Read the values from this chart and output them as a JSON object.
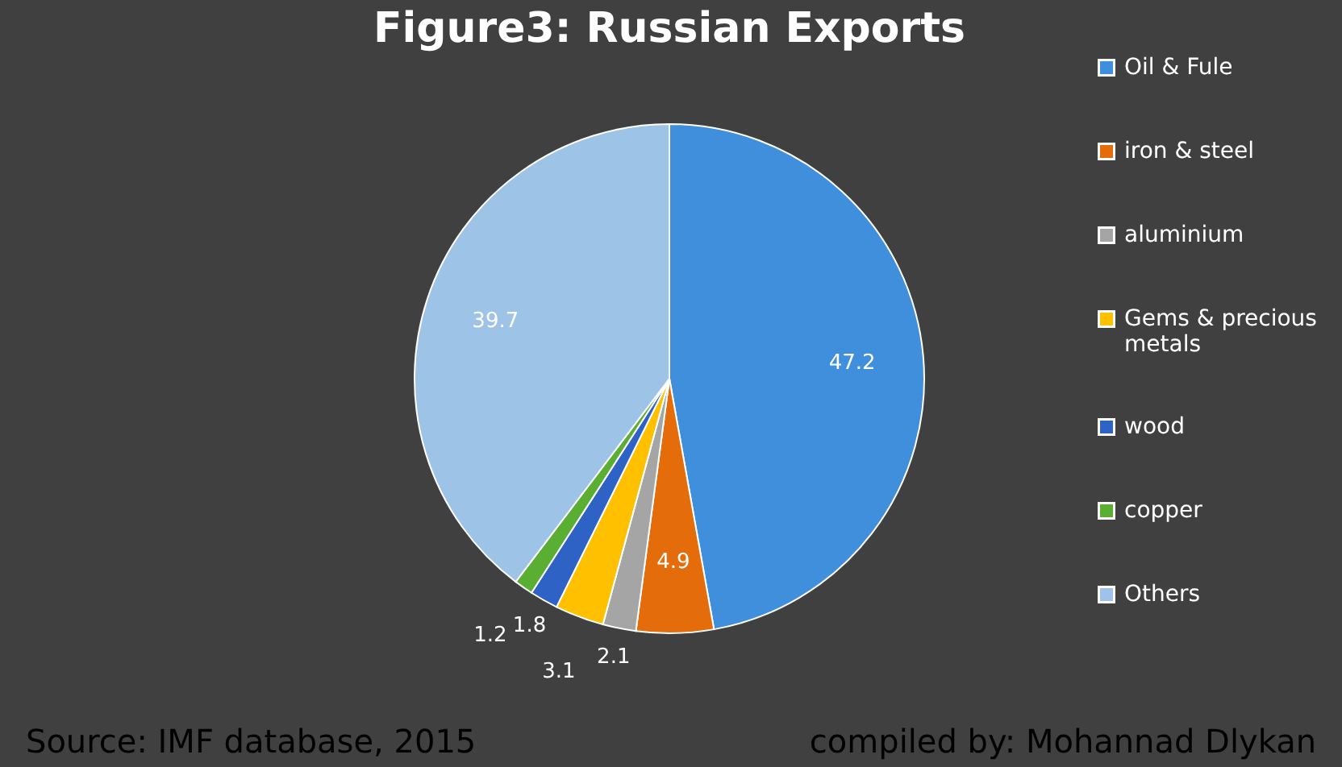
{
  "chart_data": {
    "type": "pie",
    "title": "Figure3: Russian Exports",
    "categories": [
      "Oil & Fule",
      "iron & steel",
      "aluminium",
      "Gems & precious metals",
      "wood",
      "copper",
      "Others"
    ],
    "values": [
      47.2,
      4.9,
      2.1,
      3.1,
      1.8,
      1.2,
      39.7
    ],
    "colors": [
      "#3f8fdc",
      "#e46c0a",
      "#a5a5a5",
      "#ffc000",
      "#2e62c4",
      "#5aae32",
      "#9dc3e6"
    ],
    "data_labels": true,
    "legend": "right",
    "annotations": [
      "Source: IMF database, 2015",
      "compiled by: Mohannad Dlykan"
    ]
  }
}
